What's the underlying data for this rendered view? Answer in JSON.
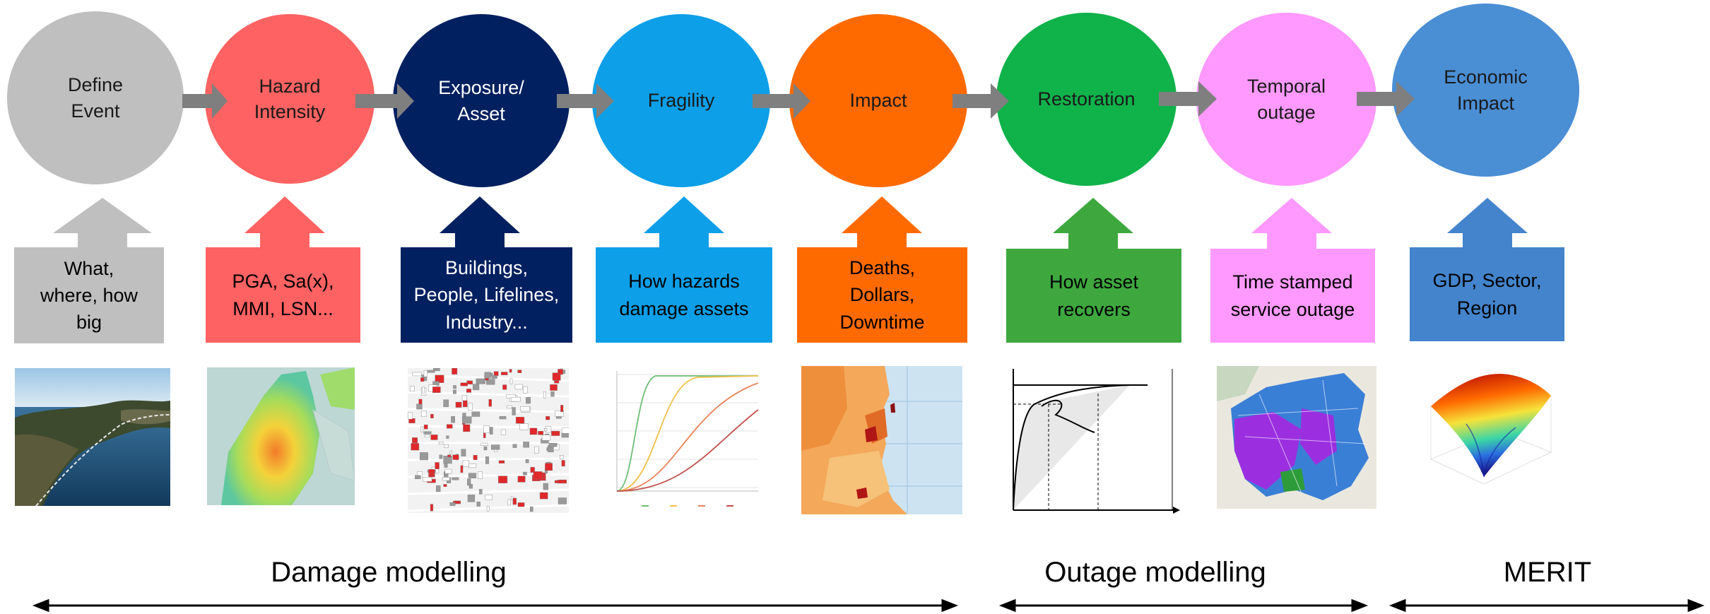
{
  "stages": [
    {
      "id": "define-event",
      "title": "Define\nEvent",
      "color": "#bfbfbf",
      "text_color": "#1a1a1a",
      "box_text": "What,\nwhere, how\nbig",
      "box_text_color": "#000000"
    },
    {
      "id": "hazard-intensity",
      "title": "Hazard\nIntensity",
      "color": "#ff6262",
      "text_color": "#1a1a1a",
      "box_text": "PGA, Sa(x),\nMMI, LSN...",
      "box_text_color": "#000000"
    },
    {
      "id": "exposure-asset",
      "title": "Exposure/\nAsset",
      "color": "#002060",
      "text_color": "#ffffff",
      "box_text": "Buildings,\nPeople, Lifelines,\nIndustry...",
      "box_text_color": "#ffffff"
    },
    {
      "id": "fragility",
      "title": "Fragility",
      "color": "#0d9fe8",
      "text_color": "#1a1a1a",
      "box_text": "How hazards\ndamage assets",
      "box_text_color": "#000000"
    },
    {
      "id": "impact",
      "title": "Impact",
      "color": "#ff6a00",
      "text_color": "#1a1a1a",
      "box_text": "Deaths,\nDollars,\nDowntime",
      "box_text_color": "#000000"
    },
    {
      "id": "restoration",
      "title": "Restoration",
      "color": "#10b24a",
      "text_color": "#1a1a1a",
      "box_text": "How asset\nrecovers",
      "box_text_color": "#000000"
    },
    {
      "id": "temporal-outage",
      "title": "Temporal\noutage",
      "color": "#ff99ff",
      "text_color": "#1a1a1a",
      "box_text": "Time stamped\nservice outage",
      "box_text_color": "#000000"
    },
    {
      "id": "economic-impact",
      "title": "Economic\nImpact",
      "color": "#4a8ed4",
      "text_color": "#1a1a1a",
      "box_text": "GDP, Sector,\nRegion",
      "box_text_color": "#000000"
    }
  ],
  "sections": [
    {
      "label": "Damage modelling"
    },
    {
      "label": "Outage modelling"
    },
    {
      "label": "MERIT"
    }
  ],
  "colors": {
    "flow_arrow": "#7f7f7f",
    "box_define": "#bfbfbf",
    "box_restoration": "#3ea83e",
    "box_economic": "#4384cc"
  },
  "images": [
    "aerial-photo",
    "hazard-heatmap",
    "building-map",
    "fragility-curves",
    "impact-map",
    "restoration-curve",
    "outage-network-map",
    "economic-3d-surface"
  ]
}
